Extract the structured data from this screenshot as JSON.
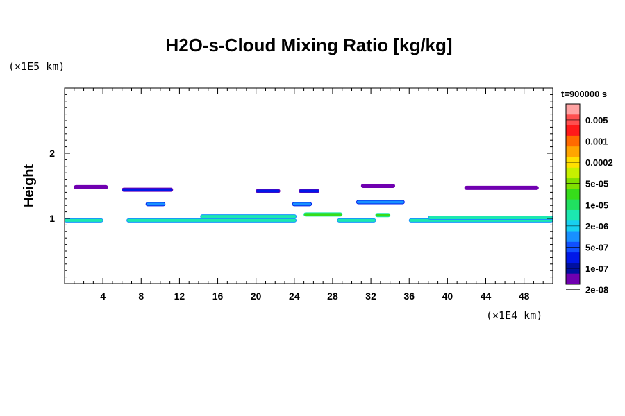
{
  "chart_data": {
    "type": "heatmap",
    "title": "H2O-s-Cloud Mixing Ratio [kg/kg]",
    "time_label": "t=900000 s",
    "ylabel": "Height",
    "x_unit": "(×1E4 km)",
    "y_unit": "(×1E5 km)",
    "xlim": [
      0,
      51
    ],
    "ylim": [
      0,
      3
    ],
    "x_ticks": [
      4,
      8,
      12,
      16,
      20,
      24,
      28,
      32,
      36,
      40,
      44,
      48
    ],
    "y_ticks": [
      1,
      2
    ],
    "colorbar": {
      "labels": [
        "0.005",
        "0.001",
        "0.0002",
        "5e-05",
        "1e-05",
        "2e-06",
        "5e-07",
        "1e-07",
        "2e-08"
      ],
      "colors": [
        "#ffa3a3",
        "#ff5050",
        "#ff1a1a",
        "#ff6a00",
        "#ffa500",
        "#ffe000",
        "#c6f000",
        "#80e000",
        "#36dc1a",
        "#20e060",
        "#1ce8b0",
        "#18d0f0",
        "#1890ff",
        "#1050ff",
        "#0018e8",
        "#0010a0",
        "#7000b0"
      ]
    },
    "cloud_bands": [
      {
        "x": [
          0,
          4
        ],
        "height": 0.97,
        "level": "1e-05"
      },
      {
        "x": [
          6.5,
          24.2
        ],
        "height": 0.97,
        "level": "1e-05"
      },
      {
        "x": [
          14.2,
          24.2
        ],
        "height": 1.03,
        "level": "1e-05"
      },
      {
        "x": [
          25,
          29
        ],
        "height": 1.06,
        "level": "5e-05"
      },
      {
        "x": [
          28.5,
          32.5
        ],
        "height": 0.97,
        "level": "1e-05"
      },
      {
        "x": [
          32.5,
          34
        ],
        "height": 1.05,
        "level": "5e-05"
      },
      {
        "x": [
          36,
          51
        ],
        "height": 0.97,
        "level": "1e-05"
      },
      {
        "x": [
          38,
          51
        ],
        "height": 1.01,
        "level": "1e-05"
      },
      {
        "x": [
          8.5,
          10.5
        ],
        "height": 1.22,
        "level": "2e-06"
      },
      {
        "x": [
          23.8,
          25.8
        ],
        "height": 1.22,
        "level": "2e-06"
      },
      {
        "x": [
          30.5,
          35.5
        ],
        "height": 1.25,
        "level": "2e-06"
      },
      {
        "x": [
          20,
          22.5
        ],
        "height": 1.42,
        "level": "5e-07"
      },
      {
        "x": [
          24.5,
          26.6
        ],
        "height": 1.42,
        "level": "5e-07"
      },
      {
        "x": [
          6,
          11.3
        ],
        "height": 1.44,
        "level": "5e-07"
      },
      {
        "x": [
          1,
          4.5
        ],
        "height": 1.48,
        "level": "1e-07"
      },
      {
        "x": [
          31,
          34.5
        ],
        "height": 1.5,
        "level": "1e-07"
      },
      {
        "x": [
          41.8,
          49.5
        ],
        "height": 1.47,
        "level": "1e-07"
      }
    ]
  }
}
